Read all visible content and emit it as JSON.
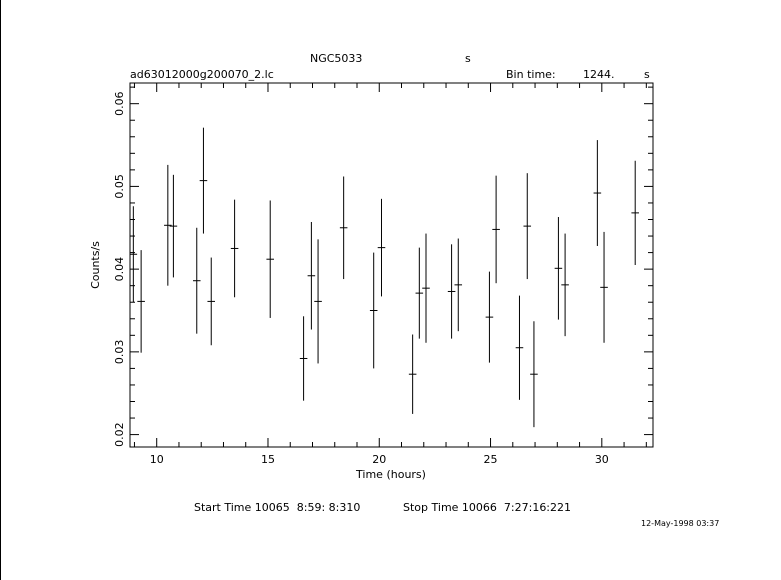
{
  "header": {
    "object": "NGC5033",
    "units_tag": "s",
    "file": "ad63012000g200070_2.lc",
    "bin_label": "Bin time:",
    "bin_value": "1244.",
    "bin_unit": "s"
  },
  "footer": {
    "start_label": "Start Time 10065  8:59: 8:310",
    "stop_label": "Stop Time 10066  7:27:16:221",
    "timestamp": "12-May-1998 03:37"
  },
  "chart_data": {
    "type": "scatter",
    "xlabel": "Time (hours)",
    "ylabel": "Counts/s",
    "xlim": [
      8.8,
      32.3
    ],
    "ylim": [
      0.0185,
      0.0625
    ],
    "xticks": [
      10,
      15,
      20,
      25,
      30
    ],
    "yticks": [
      0.02,
      0.03,
      0.04,
      0.05,
      0.06
    ],
    "ytick_labels": [
      "0.02",
      "0.03",
      "0.04",
      "0.05",
      "0.06"
    ],
    "grid": false,
    "points": [
      {
        "x": 8.95,
        "y": 0.0418,
        "yerr": 0.0058,
        "xerr": 0.17
      },
      {
        "x": 9.3,
        "y": 0.0361,
        "yerr": 0.0062,
        "xerr": 0.17
      },
      {
        "x": 10.5,
        "y": 0.0453,
        "yerr": 0.0073,
        "xerr": 0.17
      },
      {
        "x": 10.75,
        "y": 0.0452,
        "yerr": 0.0062,
        "xerr": 0.17
      },
      {
        "x": 11.8,
        "y": 0.0386,
        "yerr": 0.0064,
        "xerr": 0.17
      },
      {
        "x": 12.1,
        "y": 0.0507,
        "yerr": 0.0064,
        "xerr": 0.17
      },
      {
        "x": 12.45,
        "y": 0.0361,
        "yerr": 0.0053,
        "xerr": 0.17
      },
      {
        "x": 13.5,
        "y": 0.0425,
        "yerr": 0.0059,
        "xerr": 0.17
      },
      {
        "x": 15.1,
        "y": 0.0412,
        "yerr": 0.0071,
        "xerr": 0.17
      },
      {
        "x": 16.6,
        "y": 0.0292,
        "yerr": 0.0051,
        "xerr": 0.17
      },
      {
        "x": 16.95,
        "y": 0.0392,
        "yerr": 0.0065,
        "xerr": 0.17
      },
      {
        "x": 17.25,
        "y": 0.0361,
        "yerr": 0.0075,
        "xerr": 0.17
      },
      {
        "x": 18.4,
        "y": 0.045,
        "yerr": 0.0062,
        "xerr": 0.17
      },
      {
        "x": 19.75,
        "y": 0.035,
        "yerr": 0.007,
        "xerr": 0.17
      },
      {
        "x": 20.1,
        "y": 0.0426,
        "yerr": 0.0059,
        "xerr": 0.17
      },
      {
        "x": 21.5,
        "y": 0.0273,
        "yerr": 0.0048,
        "xerr": 0.17
      },
      {
        "x": 21.8,
        "y": 0.0371,
        "yerr": 0.0055,
        "xerr": 0.17
      },
      {
        "x": 22.1,
        "y": 0.0377,
        "yerr": 0.0066,
        "xerr": 0.17
      },
      {
        "x": 23.25,
        "y": 0.0373,
        "yerr": 0.0057,
        "xerr": 0.17
      },
      {
        "x": 23.55,
        "y": 0.0381,
        "yerr": 0.0056,
        "xerr": 0.17
      },
      {
        "x": 24.95,
        "y": 0.0342,
        "yerr": 0.0055,
        "xerr": 0.17
      },
      {
        "x": 25.25,
        "y": 0.0448,
        "yerr": 0.0065,
        "xerr": 0.17
      },
      {
        "x": 26.3,
        "y": 0.0305,
        "yerr": 0.0063,
        "xerr": 0.17
      },
      {
        "x": 26.65,
        "y": 0.0452,
        "yerr": 0.0064,
        "xerr": 0.17
      },
      {
        "x": 26.95,
        "y": 0.0273,
        "yerr": 0.0064,
        "xerr": 0.17
      },
      {
        "x": 28.05,
        "y": 0.0401,
        "yerr": 0.0062,
        "xerr": 0.17
      },
      {
        "x": 28.35,
        "y": 0.0381,
        "yerr": 0.0062,
        "xerr": 0.17
      },
      {
        "x": 29.8,
        "y": 0.0492,
        "yerr": 0.0064,
        "xerr": 0.17
      },
      {
        "x": 30.1,
        "y": 0.0378,
        "yerr": 0.0067,
        "xerr": 0.17
      },
      {
        "x": 31.5,
        "y": 0.0468,
        "yerr": 0.0063,
        "xerr": 0.17
      }
    ]
  }
}
